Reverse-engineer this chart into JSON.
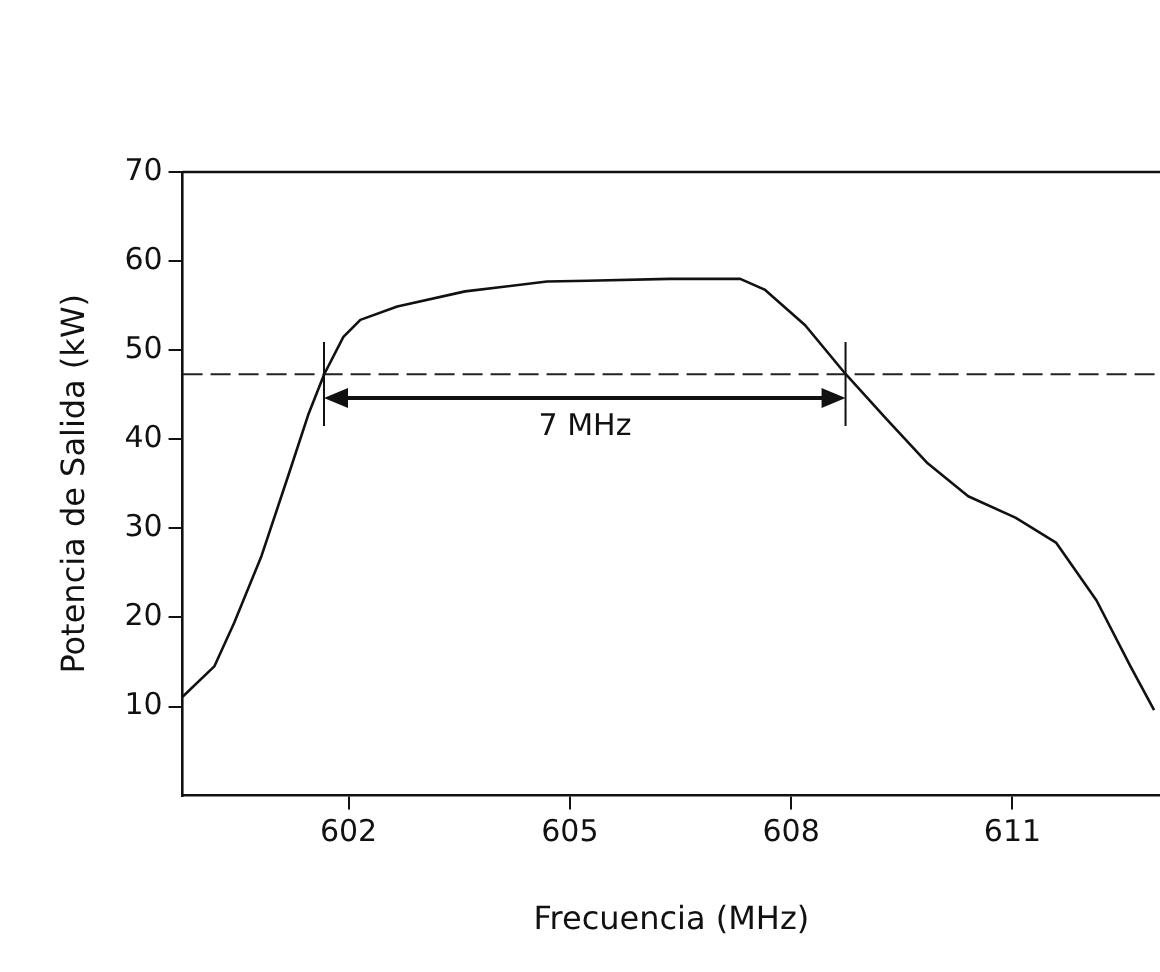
{
  "chart_data": {
    "type": "line",
    "xlabel": "Frecuencia (MHz)",
    "ylabel": "Potencia de Salida (kW)",
    "series": [
      {
        "color": "#111111",
        "x": [
          599.75,
          600.18,
          600.45,
          600.82,
          601.19,
          601.46,
          601.67,
          601.93,
          602.16,
          602.66,
          603.58,
          604.69,
          605.24,
          606.35,
          607.31,
          607.64,
          608.19,
          608.74,
          609.29,
          609.85,
          610.4,
          611.04,
          611.59,
          612.14,
          612.6,
          612.92
        ],
        "values": [
          11.1,
          14.5,
          19.4,
          26.9,
          36.1,
          42.9,
          47.3,
          51.5,
          53.4,
          54.9,
          56.6,
          57.7,
          57.8,
          58.0,
          58.0,
          56.8,
          52.8,
          47.3,
          42.3,
          37.3,
          33.6,
          31.2,
          28.4,
          21.9,
          14.5,
          9.6
        ]
      }
    ],
    "xlim": [
      599.75,
      613
    ],
    "xticks": [
      602,
      605,
      608,
      611
    ],
    "ylim": [
      0,
      70
    ],
    "yticks": [
      10,
      20,
      30,
      40,
      50,
      60,
      70
    ],
    "ref_lines": [
      {
        "axis": "y",
        "value": 47.3,
        "line_style": "dashed",
        "color": "#222222"
      }
    ],
    "annotations": [
      "7 MHz"
    ],
    "grid": false,
    "legend": false,
    "marker": "none",
    "line_style": "solid"
  }
}
